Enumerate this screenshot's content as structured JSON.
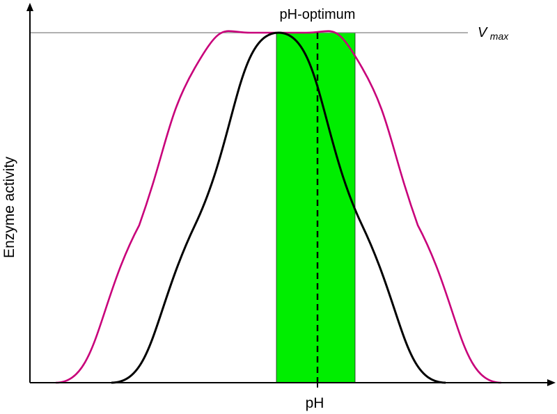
{
  "chart_data": {
    "type": "line",
    "title": "",
    "xlabel": "pH",
    "ylabel": "Enzyme activity",
    "grid": false,
    "legend": "none",
    "annotations": {
      "optimum_label": "pH-optimum",
      "vmax_label": "V",
      "vmax_subscript": "max"
    },
    "colors": {
      "broad_curve": "#c8007a",
      "narrow_curve": "#000000",
      "optimum_band": "#00ee00",
      "vmax_line": "#808080",
      "axes": "#000000"
    },
    "series": [
      {
        "style": "magenta",
        "x": [
          0.1,
          0.25,
          0.35,
          0.45,
          0.5,
          0.55,
          0.65,
          0.75,
          0.9
        ],
        "values": [
          0.0,
          0.45,
          0.9,
          1.0,
          1.0,
          1.0,
          0.9,
          0.45,
          0.0
        ]
      },
      {
        "style": "black",
        "x": [
          0.2,
          0.35,
          0.5,
          0.65,
          0.8
        ],
        "values": [
          0.0,
          0.45,
          1.0,
          0.45,
          0.0
        ]
      }
    ]
  }
}
